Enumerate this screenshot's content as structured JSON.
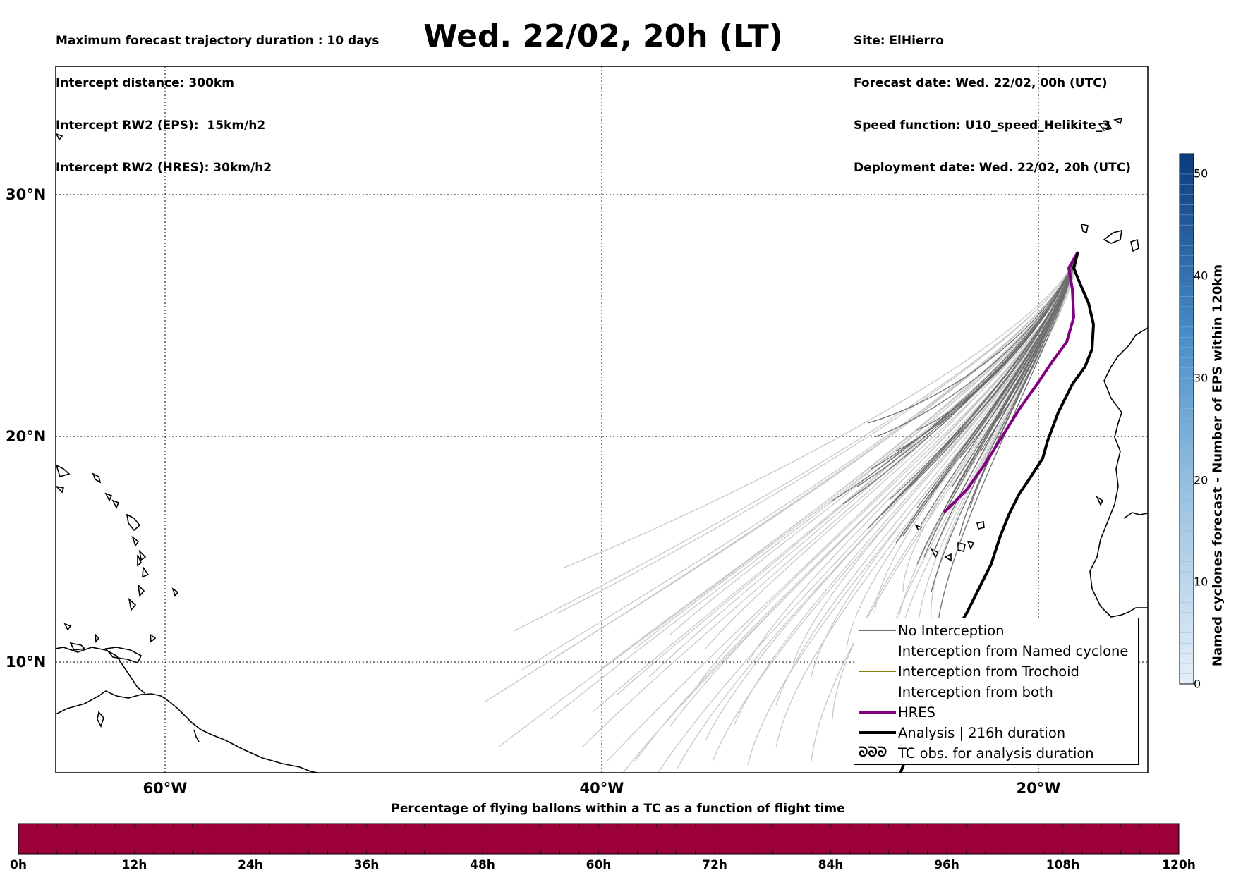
{
  "header": {
    "left_lines": [
      "Maximum forecast trajectory duration : 10 days",
      "Intercept distance: 300km",
      "Intercept RW2 (EPS):  15km/h2",
      "Intercept RW2 (HRES): 30km/h2"
    ],
    "title": "Wed. 22/02, 20h (LT)",
    "right_lines": [
      "Site: ElHierro",
      "Forecast date: Wed. 22/02, 00h (UTC)",
      "Speed function: U10_speed_Helikite_3",
      "Deployment date: Wed. 22/02, 20h (UTC)"
    ]
  },
  "map": {
    "lat_labels": [
      {
        "label": "30°N",
        "lat": 30
      },
      {
        "label": "20°N",
        "lat": 20
      },
      {
        "label": "10°N",
        "lat": 10
      }
    ],
    "lon_labels": [
      {
        "label": "60°W",
        "lon": -60
      },
      {
        "label": "40°W",
        "lon": -40
      },
      {
        "label": "20°W",
        "lon": -20
      }
    ],
    "colors": {
      "no_interception": "#6e6e6e",
      "ensemble_faded": "#c8c8c8",
      "named_cyclone": "#e8561c",
      "trochoid": "#808000",
      "both": "#2e8b2e",
      "hres": "#800080",
      "analysis": "#000000"
    }
  },
  "legend": {
    "items": [
      {
        "label": "No Interception",
        "kind": "line",
        "color": "#6e6e6e",
        "width": 1.5
      },
      {
        "label": "Interception from Named cyclone",
        "kind": "line",
        "color": "#e8561c",
        "width": 1.5
      },
      {
        "label": "Interception from Trochoid",
        "kind": "line",
        "color": "#808000",
        "width": 1.5
      },
      {
        "label": "Interception from both",
        "kind": "line",
        "color": "#2e8b2e",
        "width": 1.5
      },
      {
        "label": "HRES",
        "kind": "line",
        "color": "#800080",
        "width": 4
      },
      {
        "label": "Analysis | 216h duration",
        "kind": "line",
        "color": "#000000",
        "width": 4
      },
      {
        "label": "TC obs. for analysis duration",
        "kind": "symbol",
        "symbol": "ᘐᘐᘐ",
        "color": "#000000"
      }
    ]
  },
  "colorbar": {
    "label": "Named cyclones forecast - Number of EPS within 120km",
    "ticks": [
      "0",
      "10",
      "20",
      "30",
      "40",
      "50"
    ],
    "min": 0,
    "max": 52,
    "color_low": "#e5eef8",
    "color_high": "#0a3a7a"
  },
  "bottom_bar": {
    "title": "Percentage of flying ballons within a TC as a function of flight time",
    "ticks": [
      "0h",
      "12h",
      "24h",
      "36h",
      "48h",
      "60h",
      "72h",
      "84h",
      "96h",
      "108h",
      "120h"
    ],
    "fill_color": "#9b0039"
  }
}
